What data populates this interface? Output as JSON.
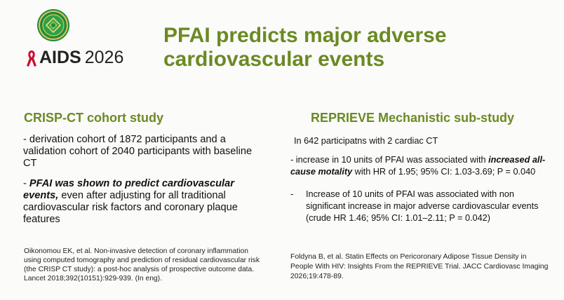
{
  "branding": {
    "logo_text": "AIDS",
    "logo_year": "2026",
    "ribbon_color": "#c8102e",
    "seal_color": "#1f8a3a"
  },
  "title": "PFAI predicts major adverse cardiovascular events",
  "left": {
    "heading": "CRISP-CT cohort study",
    "para1": " - derivation cohort of 1872 participants and a validation cohort of 2040 participants with baseline CT",
    "para2_prefix": "- ",
    "para2_emphasis": "PFAI was shown to predict cardiovascular events,",
    "para2_rest": " even after adjusting for all traditional cardiovascular risk factors and coronary plaque features",
    "reference": "Oikonomou EK, et al. Non-invasive detection of coronary inflammation using computed tomography and prediction of residual cardiovascular risk (the CRISP CT study): a post-hoc analysis of prospective outcome data. Lancet 2018;392(10151):929-939. (In eng)."
  },
  "right": {
    "heading": "REPRIEVE Mechanistic sub-study",
    "intro": "In 642 participatns with 2 cardiac CT",
    "bullet1_prefix": "- increase in 10 units of PFAI was associated with ",
    "bullet1_emphasis": "increased all-cause motality",
    "bullet1_rest": " with HR of 1.95; 95% CI: 1.03-3.69; P = 0.040",
    "bullet2_dash": "-",
    "bullet2_text": "Increase of 10 units of PFAI was associated with non significant increase in major adverse cardiovascular events (crude HR 1.46; 95% CI: 1.01–2.11; P = 0.042)",
    "reference": "Foldyna B, et al. Statin Effects on Pericoronary Adipose Tissue Density in People With HIV: Insights From the REPRIEVE Trial. JACC Cardiovasc Imaging 2026;19:478-89."
  }
}
